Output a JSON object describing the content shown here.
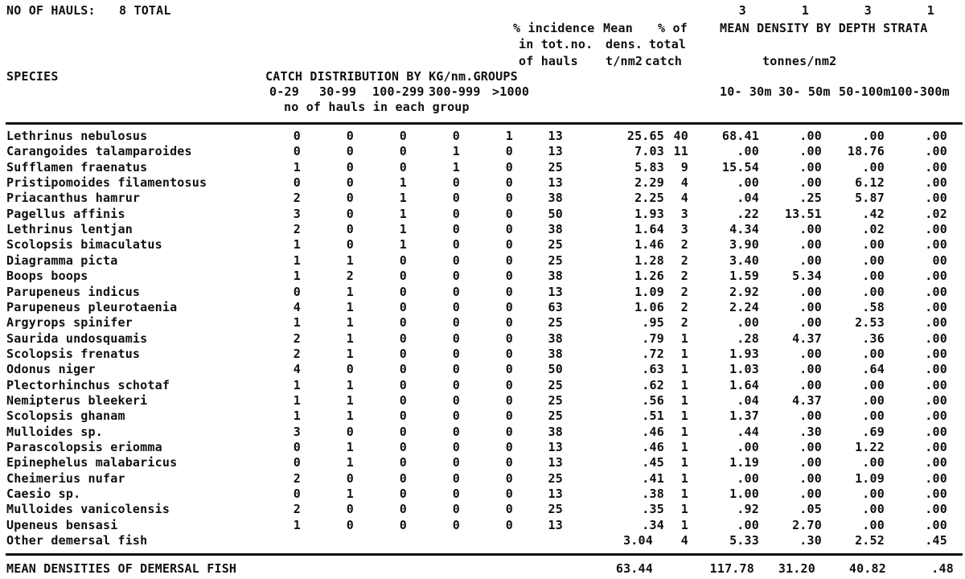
{
  "header": {
    "hauls_label": "NO OF HAULS:",
    "hauls_value": "8 TOTAL",
    "strata_haul_counts": [
      "3",
      "1",
      "3",
      "1"
    ],
    "incidence_line1": "% incidence",
    "incidence_line2": "in tot.no.",
    "incidence_line3": "of hauls",
    "mean_line1": "Mean",
    "mean_line2": "dens.",
    "mean_line3": "t/nm2",
    "pct_line1": "% of",
    "pct_line2": "total",
    "pct_line3": "catch",
    "depth_title": "MEAN DENSITY BY DEPTH STRATA",
    "depth_unit": "tonnes/nm2",
    "depth_cols": [
      "10- 30m",
      "30- 50m",
      "50-100m",
      "100-300m"
    ],
    "species_label": "SPECIES",
    "catch_dist_title": "CATCH DISTRIBUTION BY KG/nm.GROUPS",
    "group_cols": [
      "0-29",
      "30-99",
      "100-299",
      "300-999",
      ">1000"
    ],
    "group_note": "no of hauls in each group"
  },
  "rows": [
    {
      "species": "Lethrinus nebulosus",
      "values": [
        "0",
        "0",
        "0",
        "0",
        "1",
        "13",
        "25.65",
        "40",
        "68.41",
        ".00",
        ".00",
        ".00"
      ]
    },
    {
      "species": "Carangoides talamparoides",
      "values": [
        "0",
        "0",
        "0",
        "1",
        "0",
        "13",
        "7.03",
        "11",
        ".00",
        ".00",
        "18.76",
        ".00"
      ]
    },
    {
      "species": "Sufflamen fraenatus",
      "values": [
        "1",
        "0",
        "0",
        "1",
        "0",
        "25",
        "5.83",
        "9",
        "15.54",
        ".00",
        ".00",
        ".00"
      ]
    },
    {
      "species": "Pristipomoides filamentosus",
      "values": [
        "0",
        "0",
        "1",
        "0",
        "0",
        "13",
        "2.29",
        "4",
        ".00",
        ".00",
        "6.12",
        ".00"
      ]
    },
    {
      "species": "Priacanthus hamrur",
      "values": [
        "2",
        "0",
        "1",
        "0",
        "0",
        "38",
        "2.25",
        "4",
        ".04",
        ".25",
        "5.87",
        ".00"
      ]
    },
    {
      "species": "Pagellus affinis",
      "values": [
        "3",
        "0",
        "1",
        "0",
        "0",
        "50",
        "1.93",
        "3",
        ".22",
        "13.51",
        ".42",
        ".02"
      ]
    },
    {
      "species": "Lethrinus lentjan",
      "values": [
        "2",
        "0",
        "1",
        "0",
        "0",
        "38",
        "1.64",
        "3",
        "4.34",
        ".00",
        ".02",
        ".00"
      ]
    },
    {
      "species": "Scolopsis bimaculatus",
      "values": [
        "1",
        "0",
        "1",
        "0",
        "0",
        "25",
        "1.46",
        "2",
        "3.90",
        ".00",
        ".00",
        ".00"
      ]
    },
    {
      "species": "Diagramma picta",
      "values": [
        "1",
        "1",
        "0",
        "0",
        "0",
        "25",
        "1.28",
        "2",
        "3.40",
        ".00",
        ".00",
        "00"
      ]
    },
    {
      "species": "Boops boops",
      "values": [
        "1",
        "2",
        "0",
        "0",
        "0",
        "38",
        "1.26",
        "2",
        "1.59",
        "5.34",
        ".00",
        ".00"
      ]
    },
    {
      "species": "Parupeneus indicus",
      "values": [
        "0",
        "1",
        "0",
        "0",
        "0",
        "13",
        "1.09",
        "2",
        "2.92",
        ".00",
        ".00",
        ".00"
      ]
    },
    {
      "species": "Parupeneus pleurotaenia",
      "values": [
        "4",
        "1",
        "0",
        "0",
        "0",
        "63",
        "1.06",
        "2",
        "2.24",
        ".00",
        ".58",
        ".00"
      ]
    },
    {
      "species": "Argyrops spinifer",
      "values": [
        "1",
        "1",
        "0",
        "0",
        "0",
        "25",
        ".95",
        "2",
        ".00",
        ".00",
        "2.53",
        ".00"
      ]
    },
    {
      "species": "Saurida undosquamis",
      "values": [
        "2",
        "1",
        "0",
        "0",
        "0",
        "38",
        ".79",
        "1",
        ".28",
        "4.37",
        ".36",
        ".00"
      ]
    },
    {
      "species": "Scolopsis frenatus",
      "values": [
        "2",
        "1",
        "0",
        "0",
        "0",
        "38",
        ".72",
        "1",
        "1.93",
        ".00",
        ".00",
        ".00"
      ]
    },
    {
      "species": "Odonus niger",
      "values": [
        "4",
        "0",
        "0",
        "0",
        "0",
        "50",
        ".63",
        "1",
        "1.03",
        ".00",
        ".64",
        ".00"
      ]
    },
    {
      "species": "Plectorhinchus schotaf",
      "values": [
        "1",
        "1",
        "0",
        "0",
        "0",
        "25",
        ".62",
        "1",
        "1.64",
        ".00",
        ".00",
        ".00"
      ]
    },
    {
      "species": "Nemipterus bleekeri",
      "values": [
        "1",
        "1",
        "0",
        "0",
        "0",
        "25",
        ".56",
        "1",
        ".04",
        "4.37",
        ".00",
        ".00"
      ]
    },
    {
      "species": "Scolopsis ghanam",
      "values": [
        "1",
        "1",
        "0",
        "0",
        "0",
        "25",
        ".51",
        "1",
        "1.37",
        ".00",
        ".00",
        ".00"
      ]
    },
    {
      "species": "Mulloides sp.",
      "values": [
        "3",
        "0",
        "0",
        "0",
        "0",
        "38",
        ".46",
        "1",
        ".44",
        ".30",
        ".69",
        ".00"
      ]
    },
    {
      "species": "Parascolopsis eriomma",
      "values": [
        "0",
        "1",
        "0",
        "0",
        "0",
        "13",
        ".46",
        "1",
        ".00",
        ".00",
        "1.22",
        ".00"
      ]
    },
    {
      "species": "Epinephelus malabaricus",
      "values": [
        "0",
        "1",
        "0",
        "0",
        "0",
        "13",
        ".45",
        "1",
        "1.19",
        ".00",
        ".00",
        ".00"
      ]
    },
    {
      "species": "Cheimerius nufar",
      "values": [
        "2",
        "0",
        "0",
        "0",
        "0",
        "25",
        ".41",
        "1",
        ".00",
        ".00",
        "1.09",
        ".00"
      ]
    },
    {
      "species": "Caesio sp.",
      "values": [
        "0",
        "1",
        "0",
        "0",
        "0",
        "13",
        ".38",
        "1",
        "1.00",
        ".00",
        ".00",
        ".00"
      ]
    },
    {
      "species": "Mulloides vanicolensis",
      "values": [
        "2",
        "0",
        "0",
        "0",
        "0",
        "25",
        ".35",
        "1",
        ".92",
        ".05",
        ".00",
        ".00"
      ]
    },
    {
      "species": "Upeneus bensasi",
      "values": [
        "1",
        "0",
        "0",
        "0",
        "0",
        "13",
        ".34",
        "1",
        ".00",
        "2.70",
        ".00",
        ".00"
      ]
    },
    {
      "species": "Other demersal fish",
      "values": [
        "",
        "",
        "",
        "",
        "",
        "",
        "3.04",
        "4",
        "5.33",
        ".30",
        "2.52",
        ".45"
      ]
    }
  ],
  "footer": {
    "label": "MEAN DENSITIES OF DEMERSAL FISH",
    "values": [
      "63.44",
      "117.78",
      "31.20",
      "40.82",
      ".48"
    ]
  }
}
